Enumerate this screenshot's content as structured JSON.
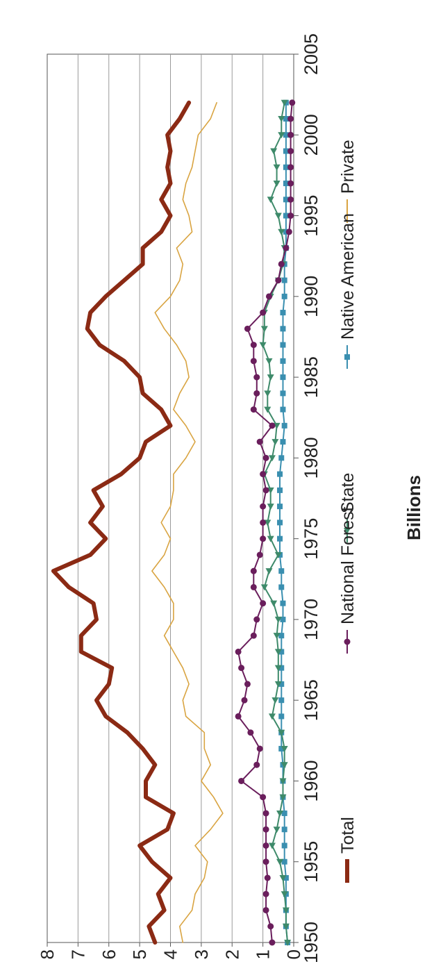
{
  "chart_data": {
    "type": "line",
    "title": "",
    "xlabel": "",
    "ylabel": "Billions",
    "xlim": [
      1950,
      2005
    ],
    "ylim": [
      0,
      8
    ],
    "x_ticks": [
      "1950",
      "1955",
      "1960",
      "1965",
      "1970",
      "1975",
      "1980",
      "1985",
      "1990",
      "1995",
      "2000",
      "2005"
    ],
    "y_ticks": [
      "0",
      "1",
      "2",
      "3",
      "4",
      "5",
      "6",
      "7",
      "8"
    ],
    "grid": "horizontal",
    "legend_position": "bottom",
    "orientation_note": "rotated 90 degrees counter-clockwise",
    "colors": {
      "Private": "#D9A441",
      "Native American": "#3A8FB0",
      "State": "#3E8A6A",
      "National Forest": "#6A1E5C",
      "Total": "#8B2A14"
    },
    "x": [
      1950,
      1951,
      1952,
      1953,
      1954,
      1955,
      1956,
      1957,
      1958,
      1959,
      1960,
      1961,
      1962,
      1963,
      1964,
      1965,
      1966,
      1967,
      1968,
      1969,
      1970,
      1971,
      1972,
      1973,
      1974,
      1975,
      1976,
      1977,
      1978,
      1979,
      1980,
      1981,
      1982,
      1983,
      1984,
      1985,
      1986,
      1987,
      1988,
      1989,
      1990,
      1991,
      1992,
      1993,
      1994,
      1995,
      1996,
      1997,
      1998,
      1999,
      2000,
      2001,
      2002
    ],
    "series": [
      {
        "name": "Private",
        "marker": "none",
        "values": [
          3.6,
          3.7,
          3.3,
          3.2,
          2.9,
          2.8,
          3.2,
          2.7,
          2.3,
          2.6,
          3.0,
          2.7,
          2.9,
          2.9,
          3.5,
          3.6,
          3.4,
          3.6,
          3.9,
          4.2,
          3.9,
          3.9,
          4.2,
          4.6,
          4.2,
          4.0,
          4.3,
          4.0,
          3.9,
          3.9,
          3.5,
          3.2,
          3.5,
          3.9,
          3.7,
          3.4,
          3.5,
          3.8,
          4.2,
          4.5,
          4.0,
          3.7,
          3.6,
          3.8,
          3.3,
          3.4,
          3.6,
          3.5,
          3.3,
          3.2,
          3.1,
          2.7,
          2.5
        ]
      },
      {
        "name": "Native American",
        "marker": "square",
        "values": [
          0.2,
          0.25,
          0.25,
          0.25,
          0.25,
          0.3,
          0.3,
          0.3,
          0.3,
          0.35,
          0.35,
          0.35,
          0.4,
          0.4,
          0.4,
          0.4,
          0.4,
          0.4,
          0.4,
          0.4,
          0.35,
          0.35,
          0.4,
          0.4,
          0.45,
          0.45,
          0.45,
          0.45,
          0.45,
          0.45,
          0.4,
          0.35,
          0.3,
          0.35,
          0.35,
          0.35,
          0.35,
          0.35,
          0.35,
          0.35,
          0.3,
          0.3,
          0.3,
          0.25,
          0.25,
          0.25,
          0.25,
          0.25,
          0.25,
          0.25,
          0.25,
          0.25,
          0.25
        ]
      },
      {
        "name": "State",
        "marker": "triangle",
        "values": [
          0.2,
          0.25,
          0.25,
          0.3,
          0.35,
          0.45,
          0.7,
          0.55,
          0.45,
          0.35,
          0.35,
          0.3,
          0.3,
          0.4,
          0.7,
          0.6,
          0.5,
          0.5,
          0.5,
          0.55,
          0.5,
          0.65,
          0.95,
          0.8,
          0.5,
          0.75,
          0.85,
          0.75,
          0.75,
          0.95,
          0.7,
          0.6,
          0.55,
          0.85,
          0.85,
          0.75,
          0.8,
          1.0,
          0.95,
          0.95,
          0.75,
          0.5,
          0.35,
          0.3,
          0.4,
          0.5,
          0.75,
          0.55,
          0.55,
          0.65,
          0.4,
          0.4,
          0.3
        ]
      },
      {
        "name": "National Forest",
        "marker": "circle",
        "values": [
          0.7,
          0.75,
          0.9,
          0.9,
          0.85,
          0.9,
          0.9,
          0.9,
          0.9,
          1.0,
          1.7,
          1.2,
          1.1,
          1.4,
          1.8,
          1.6,
          1.5,
          1.7,
          1.8,
          1.3,
          1.2,
          1.0,
          1.3,
          1.3,
          1.1,
          1.0,
          1.0,
          1.0,
          0.9,
          1.0,
          0.9,
          1.1,
          0.7,
          1.3,
          1.2,
          1.2,
          1.3,
          1.3,
          1.5,
          1.0,
          0.8,
          0.5,
          0.4,
          0.25,
          0.15,
          0.1,
          0.1,
          0.1,
          0.1,
          0.1,
          0.1,
          0.1,
          0.05
        ]
      },
      {
        "name": "Total",
        "marker": "none",
        "values": [
          4.5,
          4.7,
          4.2,
          4.4,
          4.0,
          4.6,
          5.0,
          4.1,
          3.9,
          4.8,
          4.8,
          4.5,
          4.9,
          5.4,
          6.1,
          6.4,
          6.0,
          5.9,
          6.9,
          6.9,
          6.4,
          6.5,
          7.3,
          7.8,
          6.6,
          6.1,
          6.6,
          6.2,
          6.5,
          5.6,
          5.0,
          4.8,
          4.0,
          4.3,
          4.9,
          5.0,
          5.5,
          6.3,
          6.7,
          6.6,
          6.1,
          5.5,
          4.9,
          4.9,
          4.3,
          4.0,
          4.3,
          4.0,
          4.1,
          4.0,
          4.1,
          3.7,
          3.4
        ]
      }
    ]
  }
}
